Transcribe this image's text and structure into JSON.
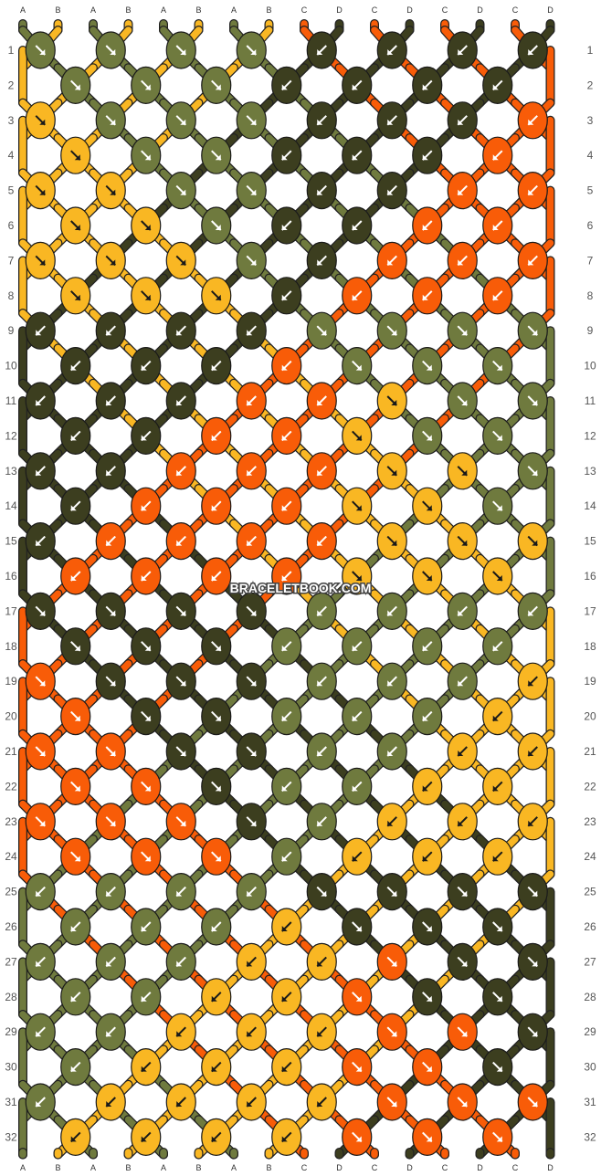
{
  "watermark": "BRACELETBOOK.COM",
  "colors": {
    "A": "#6f7a3e",
    "B": "#f9b723",
    "C": "#f85c08",
    "D": "#3c3e1f"
  },
  "top_strands": [
    "A",
    "B",
    "A",
    "B",
    "A",
    "B",
    "A",
    "B",
    "C",
    "D",
    "C",
    "D",
    "C",
    "D",
    "C",
    "D"
  ],
  "bottom_strands": [
    "A",
    "B",
    "A",
    "B",
    "A",
    "B",
    "A",
    "B",
    "C",
    "D",
    "C",
    "D",
    "C",
    "D",
    "C",
    "D"
  ],
  "row_numbers": [
    "1",
    "2",
    "3",
    "4",
    "5",
    "6",
    "7",
    "8",
    "9",
    "10",
    "11",
    "12",
    "13",
    "14",
    "15",
    "16",
    "17",
    "18",
    "19",
    "20",
    "21",
    "22",
    "23",
    "24",
    "25",
    "26",
    "27",
    "28",
    "29",
    "30",
    "31",
    "32"
  ],
  "rows": [
    "ARARARARDLDLDLDL",
    "ARARARDLDLDLDL",
    "BRARARARDLDLDLCL",
    "BRARARDLDLDLCL",
    "BRBRARARDLDLCLCL",
    "BRBRARDLDLCLCL",
    "BRBRBRARDLCLCLCL",
    "BRBRBRDLCLCLCL",
    "DLDLDLDLARARARAR",
    "DLDLDLCLARARAR",
    "DLDLDLCLCLBRARAR",
    "DLDLCLCLBRARAR",
    "DLDLCLCLCLBRBRAR",
    "DLCLCLCLBRBRAR",
    "DLCLCLCLCLBRBRBR",
    "CLCLCLCLBRBRBR",
    "DRDRDRDRALALALAL",
    "DRDRDRALALALAL",
    "CRDRDRDRALALALBL",
    "CRDRDRALALALBL",
    "CRCRDRDRALALBLBL",
    "CRCRDRALALBLBL",
    "CRCRCRDRALBLBLBL",
    "CRCRCRALBLBLBL",
    "ALALALALDRDRDRDR",
    "ALALALBLDRDRDR",
    "ALALALBLBLCRDRDR",
    "ALALBLBLCRDRDR",
    "ALALBLBLBLCRCRDR",
    "ALBLBLBLCRCRDR",
    "ALBLBLBLBLCRCRCR",
    "BLBLBLBLCRCRCR"
  ]
}
